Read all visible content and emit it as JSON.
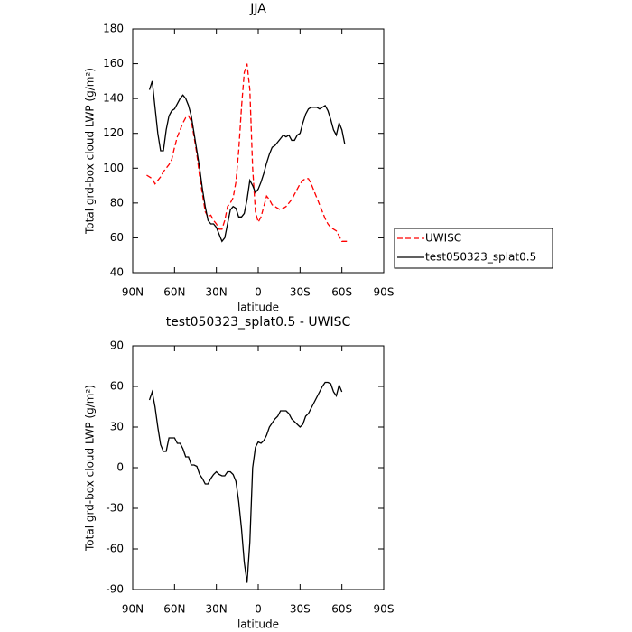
{
  "chart_data": [
    {
      "type": "line",
      "title": "JJA",
      "x_label": "latitude",
      "y_label": "Total grd-box cloud LWP (g/m²)",
      "x": [
        80,
        78,
        76,
        74,
        72,
        70,
        68,
        66,
        64,
        62,
        60,
        58,
        56,
        54,
        52,
        50,
        48,
        46,
        44,
        42,
        40,
        38,
        36,
        34,
        32,
        30,
        28,
        26,
        24,
        22,
        20,
        18,
        16,
        14,
        12,
        10,
        8,
        6,
        4,
        2,
        0,
        -2,
        -4,
        -6,
        -8,
        -10,
        -12,
        -14,
        -16,
        -18,
        -20,
        -22,
        -24,
        -26,
        -28,
        -30,
        -32,
        -34,
        -36,
        -38,
        -40,
        -42,
        -44,
        -46,
        -48,
        -50,
        -52,
        -54,
        -56,
        -58,
        -60,
        -62,
        -64
      ],
      "series": [
        {
          "name": "UWISC",
          "color": "#ff0000",
          "line_style": "dashed",
          "values": [
            96,
            95,
            94,
            91,
            93,
            95,
            98,
            100,
            102,
            105,
            112,
            118,
            122,
            126,
            129,
            130,
            127,
            118,
            108,
            95,
            85,
            75,
            72,
            73,
            70,
            68,
            65,
            65,
            70,
            78,
            80,
            83,
            92,
            110,
            135,
            155,
            160,
            145,
            100,
            75,
            69,
            72,
            78,
            84,
            82,
            79,
            78,
            77,
            76,
            77,
            78,
            80,
            82,
            85,
            88,
            91,
            93,
            94,
            94,
            91,
            87,
            83,
            79,
            75,
            71,
            68,
            66,
            65,
            64,
            61,
            58,
            58,
            58
          ]
        },
        {
          "name": "test050323_splat0.5",
          "color": "#000000",
          "line_style": "solid",
          "values": [
            null,
            145,
            150,
            135,
            120,
            110,
            110,
            122,
            130,
            133,
            134,
            137,
            140,
            142,
            140,
            136,
            130,
            120,
            110,
            100,
            88,
            78,
            70,
            68,
            68,
            66,
            62,
            58,
            60,
            68,
            76,
            78,
            77,
            72,
            72,
            74,
            82,
            93,
            90,
            86,
            88,
            92,
            97,
            103,
            108,
            112,
            113,
            115,
            117,
            119,
            118,
            119,
            116,
            116,
            119,
            120,
            126,
            131,
            134,
            135,
            135,
            135,
            134,
            135,
            136,
            133,
            128,
            122,
            119,
            126,
            122,
            114,
            null
          ]
        }
      ],
      "xlim": [
        90,
        -90
      ],
      "xticks": [
        {
          "value": 90,
          "label": "90N"
        },
        {
          "value": 60,
          "label": "60N"
        },
        {
          "value": 30,
          "label": "30N"
        },
        0,
        {
          "value": -30,
          "label": "30S"
        },
        {
          "value": -60,
          "label": "60S"
        },
        {
          "value": -90,
          "label": "90S"
        }
      ],
      "ylim": [
        40,
        180
      ],
      "yticks": [
        40,
        60,
        80,
        100,
        120,
        140,
        160,
        180
      ],
      "legend": "right"
    },
    {
      "type": "line",
      "title": "test050323_splat0.5 - UWISC",
      "x_label": "latitude",
      "y_label": "Total grd-box cloud LWP (g/m²)",
      "x": [
        80,
        78,
        76,
        74,
        72,
        70,
        68,
        66,
        64,
        62,
        60,
        58,
        56,
        54,
        52,
        50,
        48,
        46,
        44,
        42,
        40,
        38,
        36,
        34,
        32,
        30,
        28,
        26,
        24,
        22,
        20,
        18,
        16,
        14,
        12,
        10,
        8,
        6,
        4,
        2,
        0,
        -2,
        -4,
        -6,
        -8,
        -10,
        -12,
        -14,
        -16,
        -18,
        -20,
        -22,
        -24,
        -26,
        -28,
        -30,
        -32,
        -34,
        -36,
        -38,
        -40,
        -42,
        -44,
        -46,
        -48,
        -50,
        -52,
        -54,
        -56,
        -58,
        -60,
        -62,
        -64
      ],
      "values": [
        null,
        50,
        56,
        45,
        30,
        17,
        12,
        12,
        22,
        22,
        22,
        18,
        18,
        14,
        8,
        8,
        2,
        2,
        1,
        -5,
        -8,
        -12,
        -12,
        -8,
        -5,
        -3,
        -5,
        -6,
        -6,
        -3,
        -3,
        -5,
        -10,
        -25,
        -45,
        -70,
        -85,
        -55,
        0,
        15,
        19,
        18,
        20,
        24,
        30,
        33,
        36,
        38,
        42,
        42,
        42,
        40,
        36,
        34,
        32,
        30,
        32,
        38,
        40,
        44,
        48,
        52,
        56,
        60,
        63,
        63,
        62,
        56,
        53,
        61,
        56,
        null,
        null
      ],
      "color": "#000000",
      "xlim": [
        90,
        -90
      ],
      "xticks": [
        {
          "value": 90,
          "label": "90N"
        },
        {
          "value": 60,
          "label": "60N"
        },
        {
          "value": 30,
          "label": "30N"
        },
        0,
        {
          "value": -30,
          "label": "30S"
        },
        {
          "value": -60,
          "label": "60S"
        },
        {
          "value": -90,
          "label": "90S"
        }
      ],
      "ylim": [
        -90,
        90
      ],
      "yticks": [
        -90,
        -60,
        -30,
        0,
        30,
        60,
        90
      ]
    }
  ]
}
